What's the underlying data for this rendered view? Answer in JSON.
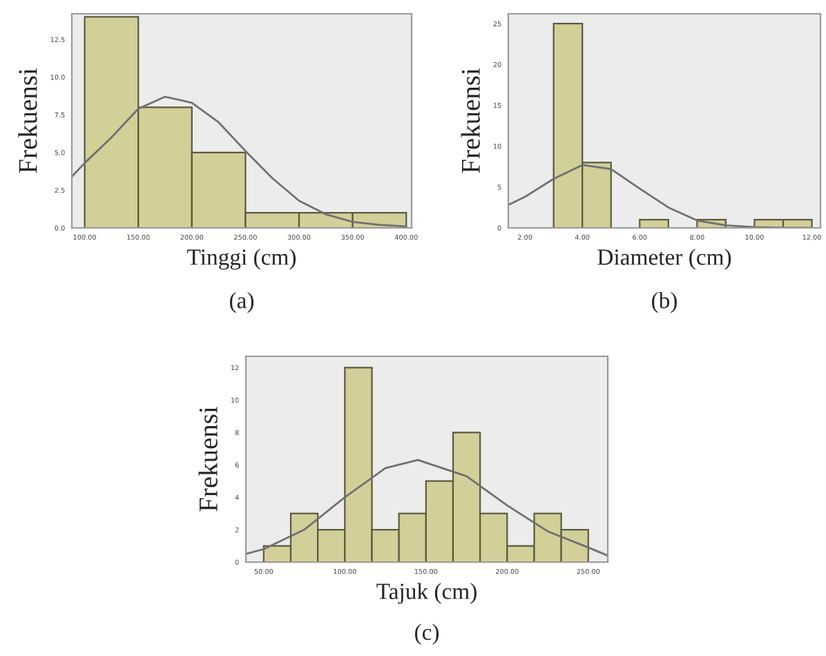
{
  "chart_data": [
    {
      "type": "histogram",
      "xlabel": "Tinggi (cm)",
      "ylabel": "Frekuensi",
      "annotations": [
        "(a)"
      ],
      "bins": [
        100,
        150,
        200,
        250,
        300,
        350,
        400
      ],
      "values": [
        14,
        8,
        5,
        1,
        1,
        1
      ],
      "color": "#d3cf98",
      "xlim": [
        88,
        405
      ],
      "ylim": [
        0,
        14.2
      ],
      "xticks": [
        {
          "value": 100,
          "label": "100.00"
        },
        {
          "value": 150,
          "label": "150.00"
        },
        {
          "value": 200,
          "label": "200.00"
        },
        {
          "value": 250,
          "label": "250.00"
        },
        {
          "value": 300,
          "label": "300.00"
        },
        {
          "value": 350,
          "label": "350.00"
        },
        {
          "value": 400,
          "label": "400.00"
        }
      ],
      "yticks": [
        {
          "value": 0,
          "label": "0.0"
        },
        {
          "value": 2.5,
          "label": "2.5"
        },
        {
          "value": 5,
          "label": "5.0"
        },
        {
          "value": 7.5,
          "label": "7.5"
        },
        {
          "value": 10,
          "label": "10.0"
        },
        {
          "value": 12.5,
          "label": "12.5"
        }
      ],
      "series": [
        {
          "type": "line",
          "color": "#707070",
          "x": [
            88,
            100,
            125,
            150,
            175,
            200,
            225,
            250,
            275,
            300,
            325,
            350,
            375,
            400
          ],
          "values": [
            3.4,
            4.3,
            6.0,
            7.9,
            8.7,
            8.3,
            7.0,
            5.1,
            3.3,
            1.8,
            0.9,
            0.4,
            0.2,
            0.1
          ]
        }
      ],
      "grid": false,
      "legend": false
    },
    {
      "type": "histogram",
      "xlabel": "Diameter (cm)",
      "ylabel": "Frekuensi",
      "annotations": [
        "(b)"
      ],
      "bins": [
        3,
        4,
        5,
        6,
        7,
        8,
        9,
        10,
        11,
        12
      ],
      "values": [
        25,
        8,
        0,
        1,
        0,
        1,
        0,
        1,
        1
      ],
      "color": "#d3cf98",
      "xlim": [
        1.42,
        12.3
      ],
      "ylim": [
        0,
        26.2
      ],
      "xticks": [
        {
          "value": 2,
          "label": "2.00"
        },
        {
          "value": 4,
          "label": "4.00"
        },
        {
          "value": 6,
          "label": "6.00"
        },
        {
          "value": 8,
          "label": "8.00"
        },
        {
          "value": 10,
          "label": "10.00"
        },
        {
          "value": 12,
          "label": "12.00"
        }
      ],
      "yticks": [
        0,
        5,
        10,
        15,
        20,
        25
      ],
      "series": [
        {
          "type": "line",
          "color": "#707070",
          "x": [
            1.42,
            2,
            3,
            4,
            5,
            6,
            7,
            8,
            9,
            10,
            11,
            12
          ],
          "values": [
            2.8,
            3.8,
            6.0,
            7.7,
            7.2,
            4.8,
            2.5,
            0.9,
            0.3,
            0.1,
            0,
            0
          ]
        }
      ],
      "grid": false,
      "legend": false
    },
    {
      "type": "histogram",
      "xlabel": "Tajuk (cm)",
      "ylabel": "Frekuensi",
      "annotations": [
        "(c)"
      ],
      "bins": [
        50,
        66.67,
        83.33,
        100,
        116.67,
        133.33,
        150,
        166.67,
        183.33,
        200,
        216.67,
        233.33,
        250
      ],
      "values": [
        1,
        3,
        2,
        12,
        2,
        3,
        5,
        8,
        3,
        1,
        3,
        2
      ],
      "color": "#d3cf98",
      "xlim": [
        39,
        262
      ],
      "ylim": [
        0,
        12.7
      ],
      "xticks": [
        {
          "value": 50,
          "label": "50.00"
        },
        {
          "value": 100,
          "label": "100.00"
        },
        {
          "value": 150,
          "label": "150.00"
        },
        {
          "value": 200,
          "label": "200.00"
        },
        {
          "value": 250,
          "label": "250.00"
        }
      ],
      "yticks": [
        0,
        2,
        4,
        6,
        8,
        10,
        12
      ],
      "series": [
        {
          "type": "line",
          "color": "#707070",
          "x": [
            39,
            50,
            75,
            100,
            125,
            145,
            175,
            200,
            225,
            250,
            262
          ],
          "values": [
            0.5,
            0.8,
            2.0,
            4.0,
            5.8,
            6.3,
            5.3,
            3.5,
            1.9,
            0.9,
            0.4
          ]
        }
      ],
      "grid": false,
      "legend": false
    }
  ]
}
